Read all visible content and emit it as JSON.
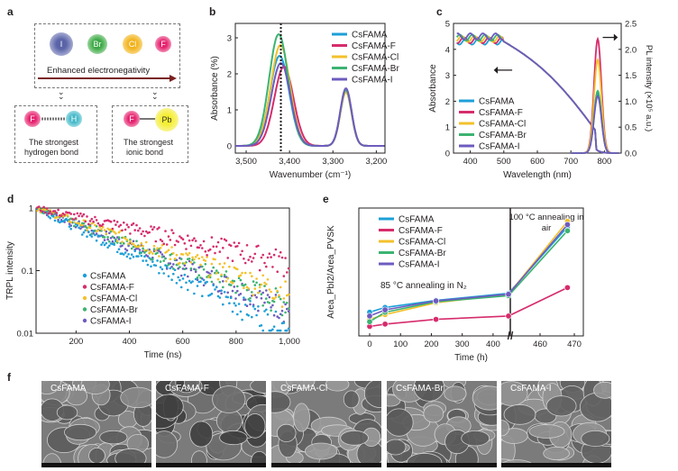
{
  "figure": {
    "panel_a": {
      "label": "a",
      "ions": [
        "I",
        "Br",
        "Cl",
        "F"
      ],
      "arrow_text": "Enhanced electronegativity",
      "hbond": {
        "atom1": "F",
        "atom2": "H",
        "caption_line1": "The strongest",
        "caption_line2": "hydrogen bond"
      },
      "ionic": {
        "atom1": "F",
        "atom2": "Pb",
        "caption_line1": "The strongest",
        "caption_line2": "ionic bond"
      }
    },
    "panel_f": {
      "label": "f",
      "images": [
        "CsFAMA",
        "CsFAMA-F",
        "CsFAMA-Cl",
        "CsFAMA-Br",
        "CsFAMA-I"
      ]
    },
    "colors": {
      "CsFAMA": "#1e9fd8",
      "CsFAMA-F": "#d62c6c",
      "CsFAMA-Cl": "#f3c12b",
      "CsFAMA-Br": "#3cb371",
      "CsFAMA-I": "#6e5bbf"
    }
  },
  "chart_data": [
    {
      "panel": "b",
      "type": "line",
      "xlabel": "Wavenumber (cm⁻¹)",
      "ylabel": "Absorbance (%)",
      "xlim": [
        3525,
        3180
      ],
      "ylim": [
        -0.2,
        3.4
      ],
      "xticks": [
        "3,500",
        "3,400",
        "3,300",
        "3,200"
      ],
      "xtick_values": [
        3500,
        3400,
        3300,
        3200
      ],
      "yticks": [
        "0",
        "1",
        "2",
        "3"
      ],
      "ytick_values": [
        0,
        1,
        2,
        3
      ],
      "dotted_line_x": 3420,
      "legend": [
        "CsFAMA",
        "CsFAMA-F",
        "CsFAMA-Cl",
        "CsFAMA-Br",
        "CsFAMA-I"
      ],
      "series": [
        {
          "name": "CsFAMA",
          "peak1_x": 3423,
          "peak1_y": 2.5,
          "peak2_x": 3270,
          "peak2_y": 1.55
        },
        {
          "name": "CsFAMA-F",
          "peak1_x": 3413,
          "peak1_y": 2.2,
          "peak2_x": 3270,
          "peak2_y": 1.5
        },
        {
          "name": "CsFAMA-Cl",
          "peak1_x": 3421,
          "peak1_y": 2.8,
          "peak2_x": 3270,
          "peak2_y": 1.5
        },
        {
          "name": "CsFAMA-Br",
          "peak1_x": 3425,
          "peak1_y": 3.1,
          "peak2_x": 3270,
          "peak2_y": 1.55
        },
        {
          "name": "CsFAMA-I",
          "peak1_x": 3420,
          "peak1_y": 2.3,
          "peak2_x": 3270,
          "peak2_y": 1.6
        }
      ]
    },
    {
      "panel": "c",
      "type": "line",
      "xlabel": "Wavelength (nm)",
      "ylabel": "Absorbance",
      "y2label": "PL intensity (×10⁵ a.u.)",
      "xlim": [
        350,
        850
      ],
      "ylim": [
        0,
        5
      ],
      "y2lim": [
        0,
        2.5
      ],
      "xticks": [
        "400",
        "500",
        "600",
        "700",
        "800"
      ],
      "xtick_values": [
        400,
        500,
        600,
        700,
        800
      ],
      "yticks": [
        "0",
        "1",
        "2",
        "3",
        "4",
        "5"
      ],
      "ytick_values": [
        0,
        1,
        2,
        3,
        4,
        5
      ],
      "y2ticks": [
        "0.0",
        "0.5",
        "1.0",
        "1.5",
        "2.0",
        "2.5"
      ],
      "y2tick_values": [
        0,
        0.5,
        1,
        1.5,
        2,
        2.5
      ],
      "absorbance_plateau": 4.3,
      "absorbance_edge_nm": 775,
      "legend": [
        "CsFAMA",
        "CsFAMA-F",
        "CsFAMA-Cl",
        "CsFAMA-Br",
        "CsFAMA-I"
      ],
      "pl_peak_nm": 780,
      "series": [
        {
          "name": "CsFAMA",
          "pl_peak": 1.15
        },
        {
          "name": "CsFAMA-F",
          "pl_peak": 2.2
        },
        {
          "name": "CsFAMA-Cl",
          "pl_peak": 1.8
        },
        {
          "name": "CsFAMA-Br",
          "pl_peak": 1.2
        },
        {
          "name": "CsFAMA-I",
          "pl_peak": 1.1
        }
      ]
    },
    {
      "panel": "d",
      "type": "scatter",
      "xlabel": "Time (ns)",
      "ylabel": "TRPL intensity",
      "xlim": [
        50,
        1000
      ],
      "ylog": [
        0.01,
        1
      ],
      "xticks": [
        "200",
        "400",
        "600",
        "800",
        "1,000"
      ],
      "xtick_values": [
        200,
        400,
        600,
        800,
        1000
      ],
      "yticks": [
        "0.01",
        "0.1",
        "1"
      ],
      "ytick_values": [
        0.01,
        0.1,
        1
      ],
      "legend": [
        "CsFAMA",
        "CsFAMA-F",
        "CsFAMA-Cl",
        "CsFAMA-Br",
        "CsFAMA-I"
      ],
      "series": [
        {
          "name": "CsFAMA",
          "value_at_1000": 0.012
        },
        {
          "name": "CsFAMA-F",
          "value_at_1000": 0.14
        },
        {
          "name": "CsFAMA-Cl",
          "value_at_1000": 0.045
        },
        {
          "name": "CsFAMA-Br",
          "value_at_1000": 0.03
        },
        {
          "name": "CsFAMA-I",
          "value_at_1000": 0.025
        }
      ]
    },
    {
      "panel": "e",
      "type": "line",
      "xlabel": "Time (h)",
      "ylabel": "Area_PbI2/Area_PVSK",
      "xticks": [
        "0",
        "100",
        "200",
        "300",
        "400",
        "460",
        "470"
      ],
      "ytick_count_hidden": true,
      "ylim": [
        0,
        2.7
      ],
      "annotation_left": "85 °C annealing in N₂",
      "annotation_right_line1": "100 °C annealing in",
      "annotation_right_line2": "air",
      "legend": [
        "CsFAMA",
        "CsFAMA-F",
        "CsFAMA-Cl",
        "CsFAMA-Br",
        "CsFAMA-I"
      ],
      "x_points": [
        0,
        50,
        215,
        450,
        468
      ],
      "series": [
        {
          "name": "CsFAMA",
          "values": [
            0.5,
            0.6,
            0.75,
            0.9,
            2.3
          ]
        },
        {
          "name": "CsFAMA-F",
          "values": [
            0.2,
            0.25,
            0.35,
            0.42,
            1.02
          ]
        },
        {
          "name": "CsFAMA-Cl",
          "values": [
            0.35,
            0.45,
            0.7,
            0.88,
            2.42
          ]
        },
        {
          "name": "CsFAMA-Br",
          "values": [
            0.3,
            0.5,
            0.72,
            0.85,
            2.22
          ]
        },
        {
          "name": "CsFAMA-I",
          "values": [
            0.42,
            0.55,
            0.74,
            0.88,
            2.35
          ]
        }
      ]
    }
  ]
}
